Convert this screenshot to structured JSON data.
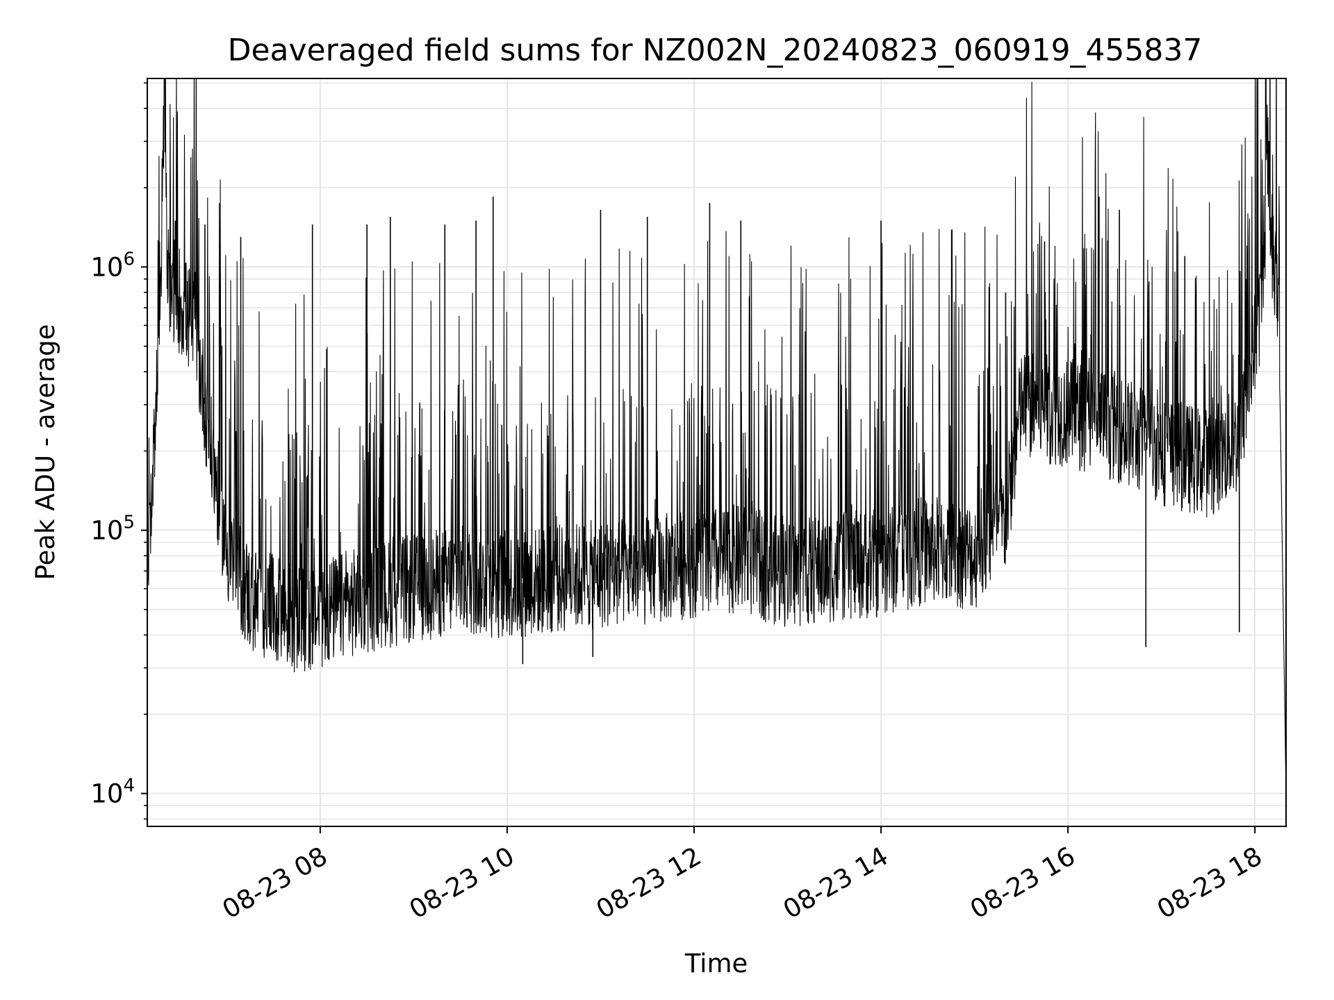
{
  "chart_data": {
    "type": "line",
    "title": "Deaveraged field sums for NZ002N_20240823_060919_455837",
    "xlabel": "Time",
    "ylabel": "Peak ADU - average",
    "yscale": "log",
    "grid": true,
    "line_color": "#000000",
    "grid_color": "#e6e6e6",
    "xlim": [
      "08-23 06:09",
      "08-23 18:20"
    ],
    "ylim": [
      7500,
      5200000
    ],
    "x_ticks": [
      {
        "label": "08-23 08",
        "value": "08-23 08:00"
      },
      {
        "label": "08-23 10",
        "value": "08-23 10:00"
      },
      {
        "label": "08-23 12",
        "value": "08-23 12:00"
      },
      {
        "label": "08-23 14",
        "value": "08-23 14:00"
      },
      {
        "label": "08-23 16",
        "value": "08-23 16:00"
      },
      {
        "label": "08-23 18",
        "value": "08-23 18:00"
      }
    ],
    "y_ticks": [
      {
        "base": "10",
        "exp": "4",
        "value": 10000
      },
      {
        "base": "10",
        "exp": "5",
        "value": 100000
      },
      {
        "base": "10",
        "exp": "6",
        "value": 1000000
      }
    ],
    "series": [
      {
        "points": [
          {
            "x": "08-23 06:09",
            "y": 80000
          },
          {
            "x": "08-23 06:13",
            "y": 170000
          },
          {
            "x": "08-23 06:18",
            "y": 1200000
          },
          {
            "x": "08-23 06:20",
            "y": 4200000
          },
          {
            "x": "08-23 06:22",
            "y": 900000
          },
          {
            "x": "08-23 06:30",
            "y": 750000
          },
          {
            "x": "08-23 06:40",
            "y": 560000
          },
          {
            "x": "08-23 06:50",
            "y": 200000
          },
          {
            "x": "08-23 07:00",
            "y": 85000
          },
          {
            "x": "08-23 07:15",
            "y": 55000
          },
          {
            "x": "08-23 07:30",
            "y": 50000
          },
          {
            "x": "08-23 07:50",
            "y": 45000
          },
          {
            "x": "08-23 08:00",
            "y": 48000
          },
          {
            "x": "08-23 08:30",
            "y": 55000
          },
          {
            "x": "08-23 09:00",
            "y": 60000
          },
          {
            "x": "08-23 09:30",
            "y": 65000
          },
          {
            "x": "08-23 10:00",
            "y": 62000
          },
          {
            "x": "08-23 10:30",
            "y": 65000
          },
          {
            "x": "08-23 11:00",
            "y": 68000
          },
          {
            "x": "08-23 11:30",
            "y": 70000
          },
          {
            "x": "08-23 12:00",
            "y": 75000
          },
          {
            "x": "08-23 12:30",
            "y": 78000
          },
          {
            "x": "08-23 13:00",
            "y": 68000
          },
          {
            "x": "08-23 13:30",
            "y": 72000
          },
          {
            "x": "08-23 14:00",
            "y": 75000
          },
          {
            "x": "08-23 14:30",
            "y": 85000
          },
          {
            "x": "08-23 15:00",
            "y": 80000
          },
          {
            "x": "08-23 15:20",
            "y": 110000
          },
          {
            "x": "08-23 15:30",
            "y": 300000
          },
          {
            "x": "08-23 16:00",
            "y": 280000
          },
          {
            "x": "08-23 16:30",
            "y": 250000
          },
          {
            "x": "08-23 17:00",
            "y": 200000
          },
          {
            "x": "08-23 17:30",
            "y": 180000
          },
          {
            "x": "08-23 17:50",
            "y": 220000
          },
          {
            "x": "08-23 18:05",
            "y": 800000
          },
          {
            "x": "08-23 18:08",
            "y": 2700000
          },
          {
            "x": "08-23 18:12",
            "y": 900000
          },
          {
            "x": "08-23 18:15",
            "y": 850000
          },
          {
            "x": "08-23 18:20",
            "y": 10000
          }
        ],
        "spikes": [
          {
            "x": "08-23 06:27",
            "y": 1500000
          },
          {
            "x": "08-23 06:46",
            "y": 1450000
          },
          {
            "x": "08-23 07:09",
            "y": 1300000
          },
          {
            "x": "08-23 07:55",
            "y": 1450000
          },
          {
            "x": "08-23 08:30",
            "y": 1450000
          },
          {
            "x": "08-23 08:45",
            "y": 1550000
          },
          {
            "x": "08-23 09:20",
            "y": 1450000
          },
          {
            "x": "08-23 09:40",
            "y": 1500000
          },
          {
            "x": "08-23 09:51",
            "y": 1850000
          },
          {
            "x": "08-23 11:00",
            "y": 1650000
          },
          {
            "x": "08-23 11:30",
            "y": 1550000
          },
          {
            "x": "08-23 12:10",
            "y": 1750000
          },
          {
            "x": "08-23 12:30",
            "y": 1500000
          },
          {
            "x": "08-23 14:00",
            "y": 1500000
          },
          {
            "x": "08-23 15:20",
            "y": 800000
          },
          {
            "x": "08-23 15:45",
            "y": 1250000
          },
          {
            "x": "08-23 16:20",
            "y": 1850000
          },
          {
            "x": "08-23 16:33",
            "y": 1650000
          },
          {
            "x": "08-23 17:15",
            "y": 1100000
          },
          {
            "x": "08-23 18:08",
            "y": 2800000
          }
        ],
        "dips": [
          {
            "x": "08-23 07:55",
            "y": 31000
          },
          {
            "x": "08-23 10:10",
            "y": 31000
          },
          {
            "x": "08-23 10:55",
            "y": 33000
          },
          {
            "x": "08-23 16:50",
            "y": 36000
          },
          {
            "x": "08-23 17:50",
            "y": 41000
          }
        ]
      }
    ]
  }
}
